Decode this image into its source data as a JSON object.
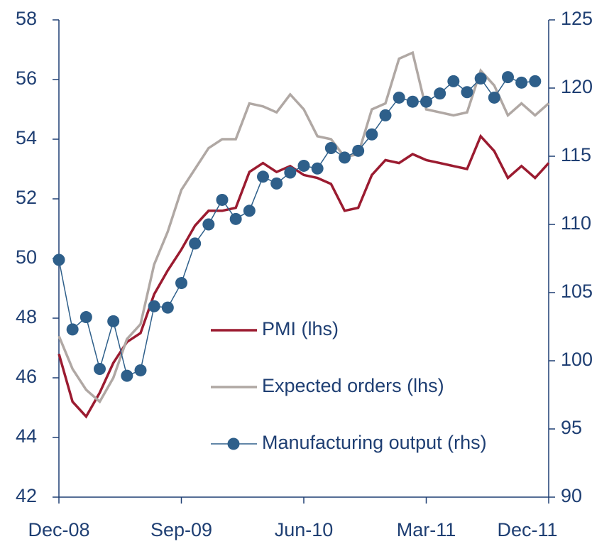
{
  "chart_data": {
    "type": "line",
    "categories": [
      "Dec-08",
      null,
      null,
      null,
      null,
      null,
      null,
      null,
      null,
      "Sep-09",
      null,
      null,
      null,
      null,
      null,
      null,
      null,
      null,
      "Jun-10",
      null,
      null,
      null,
      null,
      null,
      null,
      null,
      null,
      "Mar-11",
      null,
      null,
      null,
      null,
      null,
      null,
      null,
      null,
      "Dec-11"
    ],
    "series": [
      {
        "name": "PMI (lhs)",
        "color": "#9b1b30",
        "marker": false,
        "values": [
          46.8,
          45.2,
          44.7,
          45.5,
          46.5,
          47.2,
          47.5,
          48.8,
          49.6,
          50.3,
          51.1,
          51.6,
          51.6,
          51.7,
          52.9,
          53.2,
          52.9,
          53.1,
          52.8,
          52.7,
          52.5,
          51.6,
          51.7,
          52.8,
          53.3,
          53.2,
          53.5,
          53.3,
          53.2,
          53.1,
          53.0,
          54.1,
          53.6,
          52.7,
          53.1,
          52.7,
          53.2
        ]
      },
      {
        "name": "Expected orders (lhs)",
        "color": "#b0a8a4",
        "marker": false,
        "values": [
          47.4,
          46.3,
          45.6,
          45.2,
          46.0,
          47.3,
          47.8,
          49.8,
          50.9,
          52.3,
          53.0,
          53.7,
          54.0,
          54.0,
          55.2,
          55.1,
          54.9,
          55.5,
          55.0,
          54.1,
          54.0,
          53.4,
          53.5,
          55.0,
          55.2,
          56.7,
          56.9,
          55.0,
          54.9,
          54.8,
          54.9,
          56.3,
          55.8,
          54.8,
          55.2,
          54.8,
          55.2
        ]
      },
      {
        "name": "Manufacturing output (rhs)",
        "color": "#2e5f8a",
        "marker": true,
        "axis": "y2",
        "values": [
          107.4,
          102.3,
          103.2,
          99.4,
          102.9,
          98.9,
          99.3,
          104.0,
          103.9,
          105.7,
          108.6,
          110.0,
          111.8,
          110.4,
          111.0,
          113.5,
          113.0,
          113.8,
          114.3,
          114.1,
          115.6,
          114.9,
          115.4,
          116.6,
          118.0,
          119.3,
          119.0,
          119.0,
          119.6,
          120.5,
          119.7,
          120.7,
          119.3,
          120.8,
          120.4,
          120.5,
          null
        ]
      }
    ],
    "ylim": [
      42,
      58
    ],
    "yticks": [
      42,
      44,
      46,
      48,
      50,
      52,
      54,
      56,
      58
    ],
    "y2lim": [
      90,
      125
    ],
    "y2ticks": [
      90,
      95,
      100,
      105,
      110,
      115,
      120,
      125
    ],
    "grid": false
  }
}
